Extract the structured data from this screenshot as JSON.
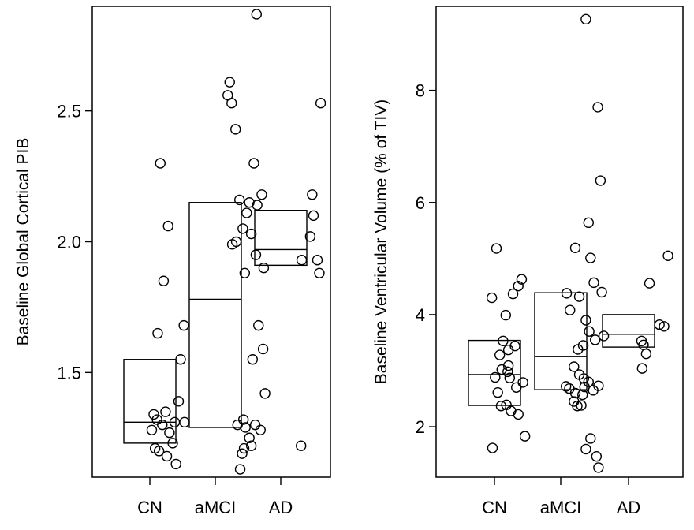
{
  "chart_data": [
    {
      "type": "scatter",
      "subtype": "box-and-jitter",
      "categories": [
        "CN",
        "aMCI",
        "AD"
      ],
      "ylabel": "Baseline Global Cortical PIB",
      "ylim": [
        1.1,
        2.9
      ],
      "yticks": [
        1.5,
        2.0,
        2.5
      ],
      "ytick_labels": [
        "1.5",
        "2.0",
        "2.5"
      ],
      "boxes": [
        {
          "q1": 1.23,
          "median": 1.31,
          "q3": 1.55
        },
        {
          "q1": 1.29,
          "median": 1.78,
          "q3": 2.15
        },
        {
          "q1": 1.91,
          "median": 1.97,
          "q3": 2.12
        }
      ],
      "points": [
        [
          1.16,
          2.3
        ],
        [
          1.28,
          2.06
        ],
        [
          1.21,
          1.85
        ],
        [
          1.12,
          1.65
        ],
        [
          1.52,
          1.68
        ],
        [
          1.47,
          1.55
        ],
        [
          1.44,
          1.39
        ],
        [
          1.06,
          1.34
        ],
        [
          1.24,
          1.35
        ],
        [
          1.11,
          1.32
        ],
        [
          1.38,
          1.31
        ],
        [
          1.19,
          1.3
        ],
        [
          1.53,
          1.31
        ],
        [
          1.03,
          1.28
        ],
        [
          1.3,
          1.27
        ],
        [
          1.08,
          1.21
        ],
        [
          1.35,
          1.23
        ],
        [
          1.14,
          1.2
        ],
        [
          1.26,
          1.18
        ],
        [
          1.4,
          1.15
        ],
        [
          2.63,
          2.87
        ],
        [
          2.22,
          2.61
        ],
        [
          2.19,
          2.56
        ],
        [
          2.25,
          2.53
        ],
        [
          2.31,
          2.43
        ],
        [
          2.59,
          2.3
        ],
        [
          2.71,
          2.18
        ],
        [
          2.37,
          2.16
        ],
        [
          2.52,
          2.15
        ],
        [
          2.64,
          2.14
        ],
        [
          2.48,
          2.11
        ],
        [
          2.42,
          2.05
        ],
        [
          2.55,
          2.03
        ],
        [
          2.32,
          2.0
        ],
        [
          2.26,
          1.99
        ],
        [
          2.62,
          1.95
        ],
        [
          2.74,
          1.9
        ],
        [
          2.45,
          1.88
        ],
        [
          2.66,
          1.68
        ],
        [
          2.73,
          1.59
        ],
        [
          2.57,
          1.55
        ],
        [
          2.76,
          1.42
        ],
        [
          2.43,
          1.32
        ],
        [
          2.61,
          1.3
        ],
        [
          2.34,
          1.3
        ],
        [
          2.46,
          1.29
        ],
        [
          2.69,
          1.28
        ],
        [
          2.52,
          1.25
        ],
        [
          2.55,
          1.22
        ],
        [
          2.44,
          1.21
        ],
        [
          2.41,
          1.19
        ],
        [
          2.38,
          1.13
        ],
        [
          3.61,
          2.53
        ],
        [
          3.48,
          2.18
        ],
        [
          3.5,
          2.1
        ],
        [
          3.45,
          2.02
        ],
        [
          3.56,
          1.93
        ],
        [
          3.32,
          1.93
        ],
        [
          3.59,
          1.88
        ],
        [
          3.31,
          1.22
        ]
      ]
    },
    {
      "type": "scatter",
      "subtype": "box-and-jitter",
      "categories": [
        "CN",
        "aMCI",
        "AD"
      ],
      "ylabel": "Baseline Ventricular Volume (% of TIV)",
      "ylim": [
        1.1,
        9.5
      ],
      "yticks": [
        2,
        4,
        6,
        8
      ],
      "ytick_labels": [
        "2",
        "4",
        "6",
        "8"
      ],
      "boxes": [
        {
          "q1": 2.38,
          "median": 2.93,
          "q3": 3.54
        },
        {
          "q1": 2.66,
          "median": 3.25,
          "q3": 4.39
        },
        {
          "q1": 3.42,
          "median": 3.65,
          "q3": 4.0
        }
      ],
      "points": [
        [
          1.03,
          5.18
        ],
        [
          1.41,
          4.63
        ],
        [
          1.36,
          4.51
        ],
        [
          0.96,
          4.3
        ],
        [
          1.28,
          4.37
        ],
        [
          1.17,
          3.99
        ],
        [
          1.13,
          3.53
        ],
        [
          1.31,
          3.44
        ],
        [
          1.21,
          3.37
        ],
        [
          1.08,
          3.28
        ],
        [
          1.21,
          3.09
        ],
        [
          1.11,
          3.02
        ],
        [
          1.2,
          2.98
        ],
        [
          1.01,
          2.88
        ],
        [
          1.23,
          2.87
        ],
        [
          1.43,
          2.79
        ],
        [
          1.33,
          2.7
        ],
        [
          1.05,
          2.61
        ],
        [
          1.18,
          2.39
        ],
        [
          1.1,
          2.37
        ],
        [
          1.25,
          2.28
        ],
        [
          1.36,
          2.22
        ],
        [
          1.46,
          1.83
        ],
        [
          0.97,
          1.62
        ],
        [
          2.38,
          9.27
        ],
        [
          2.56,
          7.7
        ],
        [
          2.6,
          6.39
        ],
        [
          2.42,
          5.64
        ],
        [
          2.22,
          5.19
        ],
        [
          2.45,
          5.01
        ],
        [
          2.5,
          4.57
        ],
        [
          2.62,
          4.4
        ],
        [
          2.09,
          4.38
        ],
        [
          2.28,
          4.32
        ],
        [
          2.14,
          4.08
        ],
        [
          2.38,
          3.9
        ],
        [
          2.43,
          3.7
        ],
        [
          2.65,
          3.62
        ],
        [
          2.52,
          3.55
        ],
        [
          2.34,
          3.45
        ],
        [
          2.26,
          3.38
        ],
        [
          2.2,
          3.07
        ],
        [
          2.28,
          2.93
        ],
        [
          2.35,
          2.86
        ],
        [
          2.42,
          2.8
        ],
        [
          2.57,
          2.73
        ],
        [
          2.08,
          2.72
        ],
        [
          2.36,
          2.71
        ],
        [
          2.13,
          2.68
        ],
        [
          2.49,
          2.65
        ],
        [
          2.22,
          2.6
        ],
        [
          2.33,
          2.57
        ],
        [
          2.2,
          2.45
        ],
        [
          2.31,
          2.38
        ],
        [
          2.25,
          2.37
        ],
        [
          2.45,
          1.79
        ],
        [
          2.38,
          1.6
        ],
        [
          2.54,
          1.47
        ],
        [
          2.57,
          1.27
        ],
        [
          3.62,
          5.05
        ],
        [
          3.34,
          4.56
        ],
        [
          3.49,
          3.82
        ],
        [
          3.56,
          3.79
        ],
        [
          3.22,
          3.53
        ],
        [
          3.25,
          3.46
        ],
        [
          3.29,
          3.3
        ],
        [
          3.23,
          3.04
        ]
      ]
    }
  ]
}
